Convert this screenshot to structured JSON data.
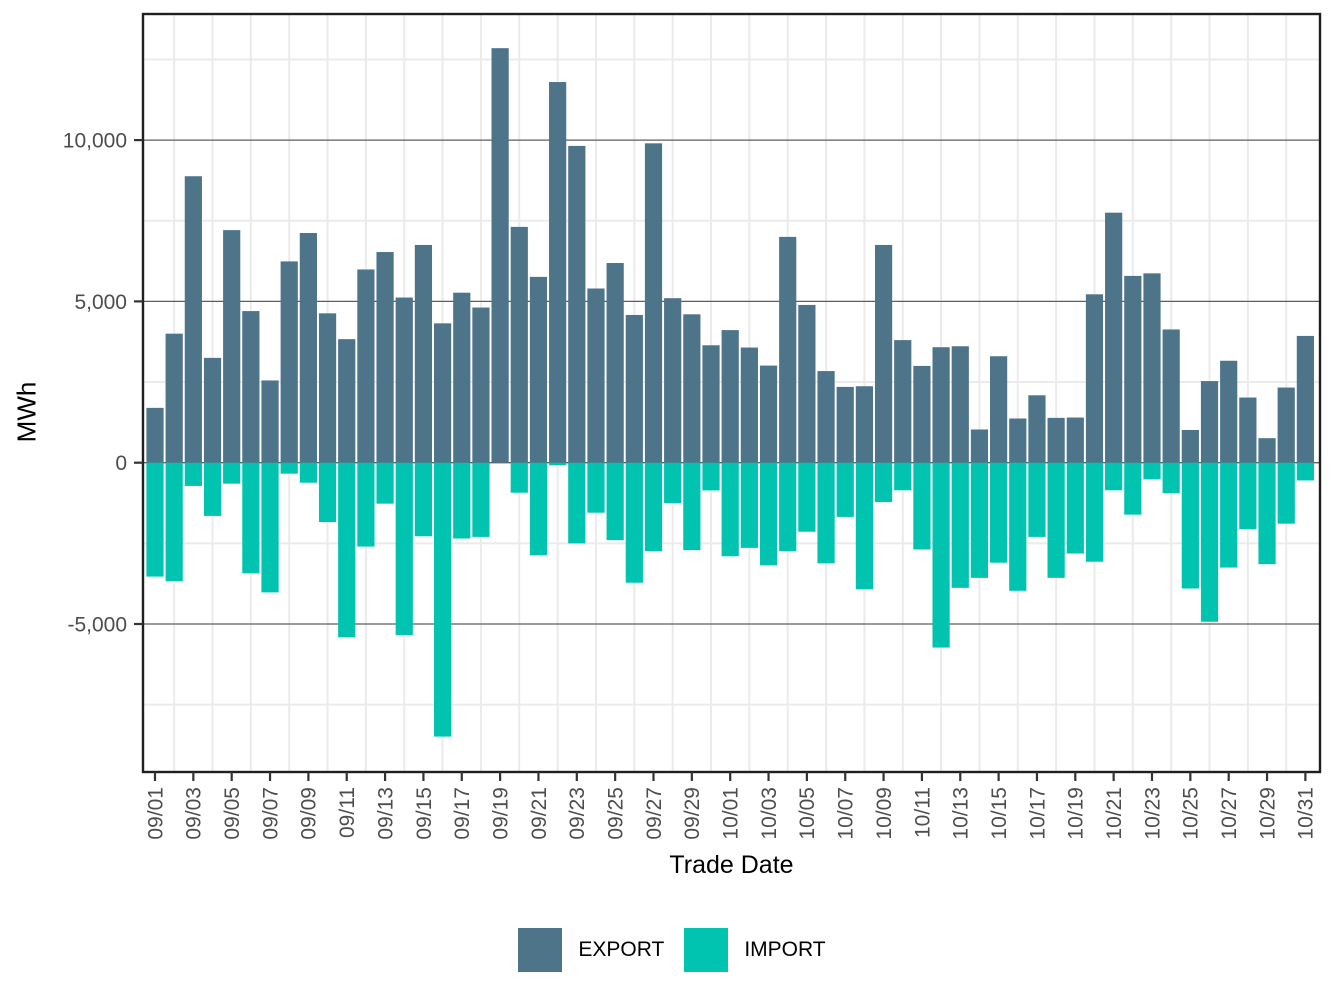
{
  "chart_data": {
    "type": "bar",
    "title": "",
    "xlabel": "Trade Date",
    "ylabel": "MWh",
    "legend_position": "bottom",
    "grid": true,
    "x": [
      "09/01",
      "09/02",
      "09/03",
      "09/04",
      "09/05",
      "09/06",
      "09/07",
      "09/08",
      "09/09",
      "09/10",
      "09/11",
      "09/12",
      "09/13",
      "09/14",
      "09/15",
      "09/16",
      "09/17",
      "09/18",
      "09/19",
      "09/20",
      "09/21",
      "09/22",
      "09/23",
      "09/24",
      "09/25",
      "09/26",
      "09/27",
      "09/28",
      "09/29",
      "09/30",
      "10/01",
      "10/02",
      "10/03",
      "10/04",
      "10/05",
      "10/06",
      "10/07",
      "10/08",
      "10/09",
      "10/10",
      "10/11",
      "10/12",
      "10/13",
      "10/14",
      "10/15",
      "10/16",
      "10/17",
      "10/18",
      "10/19",
      "10/20",
      "10/21",
      "10/22",
      "10/23",
      "10/24",
      "10/25",
      "10/26",
      "10/27",
      "10/28",
      "10/29",
      "10/30",
      "10/31"
    ],
    "series": [
      {
        "name": "EXPORT",
        "color": "#4e7489",
        "values": [
          1700,
          4000,
          8880,
          3250,
          7210,
          4700,
          2550,
          6240,
          7120,
          4630,
          3830,
          5990,
          6530,
          5120,
          6750,
          4320,
          5270,
          4810,
          12850,
          7310,
          5760,
          11800,
          9820,
          5400,
          6190,
          4580,
          9900,
          5100,
          4600,
          3640,
          4110,
          3570,
          3010,
          7000,
          4890,
          2840,
          2350,
          2370,
          6750,
          3800,
          3000,
          3580,
          3610,
          1030,
          3300,
          1370,
          2090,
          1390,
          1400,
          5220,
          7750,
          5790,
          5870,
          4130,
          1015,
          2530,
          3160,
          2020,
          760,
          2330,
          3930
        ]
      },
      {
        "name": "IMPORT",
        "color": "#00c3b0",
        "values": [
          -3530,
          -3670,
          -720,
          -1650,
          -650,
          -3430,
          -4020,
          -340,
          -620,
          -1840,
          -5410,
          -2600,
          -1270,
          -5340,
          -2280,
          -8490,
          -2350,
          -2300,
          0,
          -930,
          -2870,
          -80,
          -2500,
          -1550,
          -2400,
          -3720,
          -2740,
          -1250,
          -2710,
          -860,
          -2900,
          -2640,
          -3180,
          -2740,
          -2140,
          -3120,
          -1680,
          -3920,
          -1220,
          -855,
          -2690,
          -5730,
          -3880,
          -3570,
          -3100,
          -3970,
          -2300,
          -3570,
          -2815,
          -3070,
          -855,
          -1610,
          -515,
          -940,
          -3900,
          -4930,
          -3250,
          -2060,
          -3145,
          -1890,
          -550
        ]
      }
    ],
    "y_axis": {
      "ticks": [
        10000,
        5000,
        0,
        -5000
      ],
      "tick_labels": [
        "10,000",
        "5,000",
        "0",
        "-5,000"
      ],
      "minor_ticks": [
        12500,
        7500,
        2500,
        -2500,
        -7500
      ],
      "ylim": [
        -9590,
        13875
      ]
    },
    "x_axis": {
      "label_step": 2,
      "first_label": "09/01",
      "last_label": "10/31"
    },
    "colors": {
      "export": "#4e7489",
      "import": "#00c3b0",
      "grid_major": "#5e5e5e",
      "grid_minor": "#ebebeb",
      "panel_border": "#1f1f1f",
      "tick_text": "#4d4d4d"
    }
  }
}
